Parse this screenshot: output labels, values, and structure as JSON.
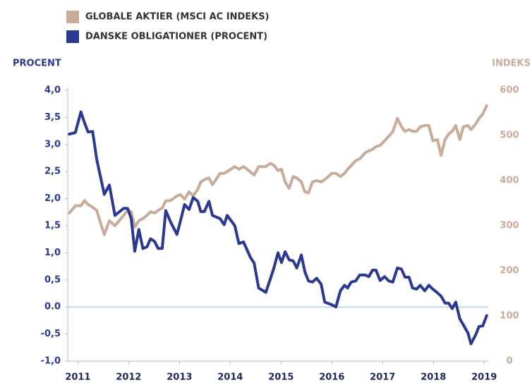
{
  "chart_data": {
    "type": "line",
    "y_label": "PROCENT",
    "y2_label": "INDEKS",
    "x": [
      2010.83,
      2010.95,
      2011.06,
      2011.13,
      2011.2,
      2011.29,
      2011.37,
      2011.52,
      2011.62,
      2011.73,
      2011.9,
      2011.98,
      2012.05,
      2012.12,
      2012.2,
      2012.28,
      2012.36,
      2012.43,
      2012.51,
      2012.58,
      2012.66,
      2012.73,
      2012.83,
      2012.95,
      2013.02,
      2013.1,
      2013.19,
      2013.27,
      2013.36,
      2013.42,
      2013.49,
      2013.58,
      2013.65,
      2013.8,
      2013.88,
      2013.94,
      2014.09,
      2014.17,
      2014.26,
      2014.4,
      2014.47,
      2014.56,
      2014.7,
      2014.79,
      2014.86,
      2014.94,
      2015.01,
      2015.08,
      2015.16,
      2015.24,
      2015.31,
      2015.4,
      2015.47,
      2015.54,
      2015.62,
      2015.7,
      2015.79,
      2015.86,
      2016.0,
      2016.08,
      2016.17,
      2016.25,
      2016.31,
      2016.38,
      2016.47,
      2016.55,
      2016.66,
      2016.73,
      2016.8,
      2016.87,
      2016.95,
      2017.04,
      2017.12,
      2017.2,
      2017.29,
      2017.37,
      2017.44,
      2017.52,
      2017.59,
      2017.67,
      2017.74,
      2017.83,
      2017.91,
      2017.99,
      2018.08,
      2018.15,
      2018.23,
      2018.3,
      2018.37,
      2018.44,
      2018.52,
      2018.59,
      2018.68,
      2018.74,
      2018.83,
      2018.9,
      2018.97,
      2019.05
    ],
    "series": [
      {
        "name": "GLOBALE AKTIER (MSCI AC INDEKS)",
        "color": "#c8ab99",
        "axis": "y2",
        "values": [
          328,
          344,
          344,
          356,
          347,
          341,
          334,
          280,
          311,
          300,
          323,
          334,
          331,
          297,
          311,
          316,
          323,
          331,
          328,
          334,
          339,
          355,
          356,
          366,
          369,
          359,
          375,
          366,
          381,
          397,
          402,
          406,
          391,
          416,
          416,
          420,
          431,
          425,
          431,
          419,
          412,
          431,
          431,
          438,
          434,
          422,
          425,
          397,
          383,
          409,
          406,
          397,
          375,
          373,
          397,
          400,
          397,
          402,
          416,
          416,
          409,
          416,
          425,
          433,
          444,
          448,
          462,
          466,
          469,
          475,
          478,
          488,
          498,
          508,
          538,
          519,
          509,
          513,
          509,
          509,
          519,
          522,
          522,
          488,
          491,
          456,
          491,
          503,
          509,
          522,
          491,
          519,
          522,
          513,
          525,
          538,
          547,
          566
        ]
      },
      {
        "name": "DANSKE OBLIGATIONER (PROCENT)",
        "color": "#2b3990",
        "axis": "y",
        "values": [
          3.19,
          3.22,
          3.6,
          3.4,
          3.23,
          3.24,
          2.73,
          2.08,
          2.25,
          1.69,
          1.82,
          1.82,
          1.63,
          1.03,
          1.43,
          1.08,
          1.11,
          1.26,
          1.21,
          1.08,
          1.08,
          1.78,
          1.56,
          1.34,
          1.59,
          1.89,
          1.8,
          2.02,
          1.95,
          1.76,
          1.76,
          1.95,
          1.69,
          1.63,
          1.52,
          1.69,
          1.5,
          1.17,
          1.2,
          0.91,
          0.81,
          0.35,
          0.27,
          0.52,
          0.72,
          1.0,
          0.82,
          1.02,
          0.87,
          0.85,
          0.72,
          0.96,
          0.65,
          0.48,
          0.46,
          0.53,
          0.42,
          0.09,
          0.04,
          0.0,
          0.3,
          0.4,
          0.35,
          0.46,
          0.48,
          0.59,
          0.59,
          0.56,
          0.68,
          0.68,
          0.49,
          0.56,
          0.48,
          0.46,
          0.72,
          0.7,
          0.55,
          0.55,
          0.35,
          0.33,
          0.4,
          0.3,
          0.4,
          0.33,
          0.26,
          0.2,
          0.07,
          0.07,
          -0.03,
          0.09,
          -0.22,
          -0.33,
          -0.48,
          -0.68,
          -0.52,
          -0.36,
          -0.35,
          -0.16
        ]
      }
    ],
    "xlim": [
      2010.8,
      2019.08
    ],
    "xticks": [
      2011,
      2012,
      2013,
      2014,
      2015,
      2016,
      2017,
      2018,
      2019
    ],
    "ylim": [
      -1,
      4
    ],
    "yticks": [
      {
        "value": 4,
        "label": "4,0"
      },
      {
        "value": 3.5,
        "label": "3,5"
      },
      {
        "value": 3,
        "label": "3,0"
      },
      {
        "value": 2.5,
        "label": "2,5"
      },
      {
        "value": 2,
        "label": "2,0"
      },
      {
        "value": 1.5,
        "label": "1,5"
      },
      {
        "value": 1,
        "label": "1,0"
      },
      {
        "value": 0.5,
        "label": "0,5"
      },
      {
        "value": 0,
        "label": "0.0"
      },
      {
        "value": -0.5,
        "label": "-0,5"
      },
      {
        "value": -1,
        "label": "-1,0"
      }
    ],
    "y2lim": [
      0,
      600
    ],
    "y2ticks": [
      600,
      500,
      400,
      300,
      200,
      100,
      0
    ],
    "legend": "top-left"
  }
}
